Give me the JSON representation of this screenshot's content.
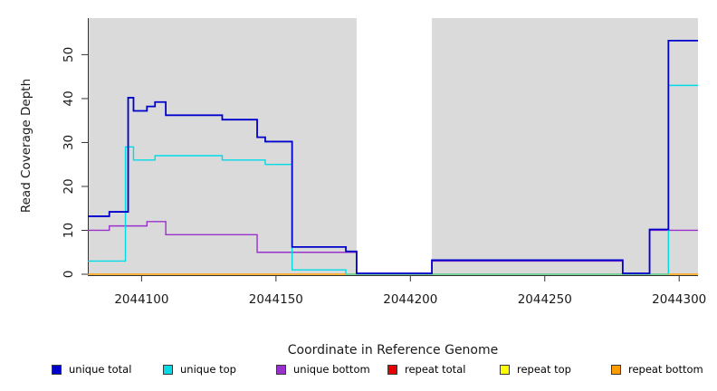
{
  "chart_data": {
    "type": "line",
    "subtype": "step",
    "title": "",
    "xlabel": "Coordinate in Reference Genome",
    "ylabel": "Read Coverage Depth",
    "xlim": [
      2044080,
      2044307
    ],
    "ylim": [
      0,
      58
    ],
    "x_ticks": [
      2044100,
      2044150,
      2044200,
      2044250,
      2044300
    ],
    "y_ticks": [
      0,
      10,
      20,
      30,
      40,
      50
    ],
    "grid": false,
    "legend_position": "bottom",
    "plot_bg": "#DADADA",
    "axis_color": "#333333",
    "highlight_band": {
      "x0": 2044180,
      "x1": 2044208,
      "color": "#FFFFFF"
    },
    "series": [
      {
        "name": "unique total",
        "color": "#0000CD",
        "steps": [
          [
            2044080,
            13
          ],
          [
            2044088,
            14
          ],
          [
            2044095,
            40
          ],
          [
            2044097,
            37
          ],
          [
            2044102,
            38
          ],
          [
            2044105,
            39
          ],
          [
            2044109,
            36
          ],
          [
            2044130,
            35
          ],
          [
            2044143,
            31
          ],
          [
            2044146,
            30
          ],
          [
            2044156,
            6
          ],
          [
            2044176,
            5
          ],
          [
            2044180,
            0
          ],
          [
            2044208,
            3
          ],
          [
            2044279,
            0
          ],
          [
            2044289,
            10
          ],
          [
            2044296,
            53
          ]
        ]
      },
      {
        "name": "unique top",
        "color": "#00DBE8",
        "steps": [
          [
            2044080,
            3
          ],
          [
            2044094,
            29
          ],
          [
            2044097,
            26
          ],
          [
            2044105,
            27
          ],
          [
            2044130,
            26
          ],
          [
            2044146,
            25
          ],
          [
            2044156,
            1
          ],
          [
            2044176,
            0
          ],
          [
            2044296,
            43
          ]
        ]
      },
      {
        "name": "unique bottom",
        "color": "#9932CC",
        "steps": [
          [
            2044080,
            10
          ],
          [
            2044088,
            11
          ],
          [
            2044102,
            12
          ],
          [
            2044109,
            9
          ],
          [
            2044143,
            5
          ],
          [
            2044180,
            0
          ],
          [
            2044208,
            3
          ],
          [
            2044279,
            0
          ],
          [
            2044289,
            10
          ]
        ]
      },
      {
        "name": "repeat total",
        "color": "#E60000",
        "steps": [
          [
            2044080,
            0
          ]
        ]
      },
      {
        "name": "repeat top",
        "color": "#FFFF00",
        "steps": [
          [
            2044080,
            0
          ]
        ]
      },
      {
        "name": "repeat bottom",
        "color": "#FF9D00",
        "steps": [
          [
            2044080,
            0
          ]
        ]
      }
    ],
    "baseline_segments": [
      {
        "x0": 2044080,
        "x1": 2044176,
        "color": "#FF9D00"
      },
      {
        "x0": 2044176,
        "x1": 2044296,
        "color": "#7CCB7C"
      },
      {
        "x0": 2044296,
        "x1": 2044307,
        "color": "#FF9D00"
      }
    ]
  }
}
